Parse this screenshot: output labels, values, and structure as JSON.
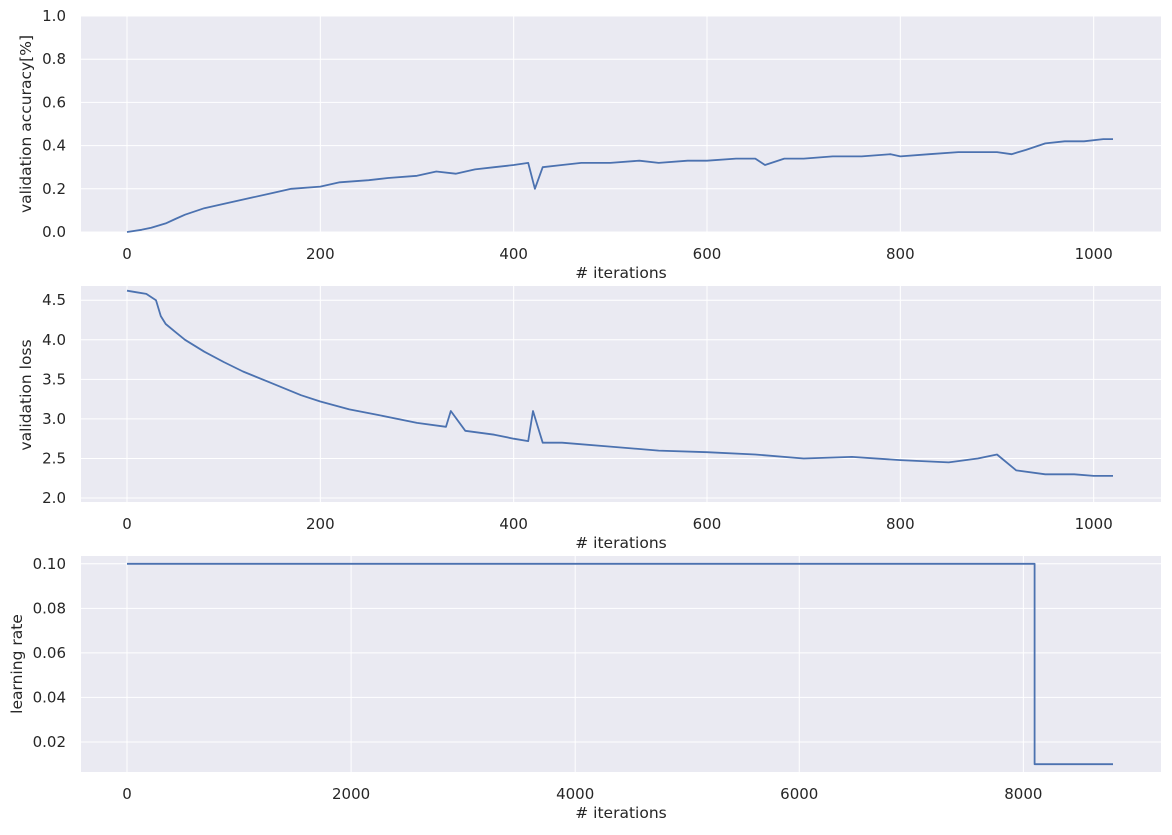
{
  "figure": {
    "background": "#ffffff",
    "plot_background": "#eaeaf2",
    "line_color": "#4c72b0"
  },
  "chart_data": [
    {
      "type": "line",
      "ylabel": "validation accuracy[%]",
      "xlabel": "# iterations",
      "xlim": [
        0,
        1020
      ],
      "ylim": [
        0.0,
        1.0
      ],
      "xticks": [
        0,
        200,
        400,
        600,
        800,
        1000
      ],
      "xtick_labels": [
        "0",
        "200",
        "400",
        "600",
        "800",
        "1000"
      ],
      "yticks": [
        0.0,
        0.2,
        0.4,
        0.6,
        0.8,
        1.0
      ],
      "ytick_labels": [
        "0.0",
        "0.2",
        "0.4",
        "0.6",
        "0.8",
        "1.0"
      ],
      "grid": true,
      "series": [
        {
          "x": [
            0,
            15,
            25,
            40,
            50,
            60,
            80,
            100,
            130,
            150,
            170,
            200,
            220,
            250,
            270,
            300,
            320,
            340,
            360,
            380,
            400,
            415,
            422,
            430,
            450,
            470,
            500,
            530,
            550,
            580,
            600,
            630,
            650,
            660,
            680,
            700,
            730,
            760,
            790,
            800,
            830,
            860,
            880,
            900,
            915,
            930,
            950,
            970,
            990,
            1010,
            1020
          ],
          "y": [
            0.0,
            0.01,
            0.02,
            0.04,
            0.06,
            0.08,
            0.11,
            0.13,
            0.16,
            0.18,
            0.2,
            0.21,
            0.23,
            0.24,
            0.25,
            0.26,
            0.28,
            0.27,
            0.29,
            0.3,
            0.31,
            0.32,
            0.2,
            0.3,
            0.31,
            0.32,
            0.32,
            0.33,
            0.32,
            0.33,
            0.33,
            0.34,
            0.34,
            0.31,
            0.34,
            0.34,
            0.35,
            0.35,
            0.36,
            0.35,
            0.36,
            0.37,
            0.37,
            0.37,
            0.36,
            0.38,
            0.41,
            0.42,
            0.42,
            0.43,
            0.43
          ]
        }
      ]
    },
    {
      "type": "line",
      "ylabel": "validation loss",
      "xlabel": "# iterations",
      "xlim": [
        0,
        1020
      ],
      "ylim": [
        1.95,
        4.68
      ],
      "xticks": [
        0,
        200,
        400,
        600,
        800,
        1000
      ],
      "xtick_labels": [
        "0",
        "200",
        "400",
        "600",
        "800",
        "1000"
      ],
      "yticks": [
        2.0,
        2.5,
        3.0,
        3.5,
        4.0,
        4.5
      ],
      "ytick_labels": [
        "2.0",
        "2.5",
        "3.0",
        "3.5",
        "4.0",
        "4.5"
      ],
      "grid": true,
      "series": [
        {
          "x": [
            0,
            10,
            20,
            30,
            35,
            40,
            50,
            60,
            80,
            100,
            120,
            150,
            180,
            200,
            230,
            260,
            300,
            330,
            335,
            350,
            380,
            400,
            415,
            420,
            425,
            430,
            450,
            500,
            550,
            600,
            650,
            700,
            750,
            800,
            850,
            880,
            900,
            920,
            950,
            980,
            1000,
            1020
          ],
          "y": [
            4.62,
            4.6,
            4.58,
            4.5,
            4.3,
            4.2,
            4.1,
            4.0,
            3.85,
            3.72,
            3.6,
            3.45,
            3.3,
            3.22,
            3.12,
            3.05,
            2.95,
            2.9,
            3.1,
            2.85,
            2.8,
            2.75,
            2.72,
            3.1,
            2.9,
            2.7,
            2.7,
            2.65,
            2.6,
            2.58,
            2.55,
            2.5,
            2.52,
            2.48,
            2.45,
            2.5,
            2.55,
            2.35,
            2.3,
            2.3,
            2.28,
            2.28
          ]
        }
      ]
    },
    {
      "type": "line",
      "ylabel": "learning rate",
      "xlabel": "# iterations",
      "xlim": [
        0,
        8800
      ],
      "ylim": [
        0.0065,
        0.1035
      ],
      "xticks": [
        0,
        2000,
        4000,
        6000,
        8000
      ],
      "xtick_labels": [
        "0",
        "2000",
        "4000",
        "6000",
        "8000"
      ],
      "yticks": [
        0.02,
        0.04,
        0.06,
        0.08,
        0.1
      ],
      "ytick_labels": [
        "0.02",
        "0.04",
        "0.06",
        "0.08",
        "0.10"
      ],
      "grid": true,
      "series": [
        {
          "x": [
            0,
            8100,
            8100,
            8800
          ],
          "y": [
            0.1,
            0.1,
            0.01,
            0.01
          ]
        }
      ]
    }
  ]
}
